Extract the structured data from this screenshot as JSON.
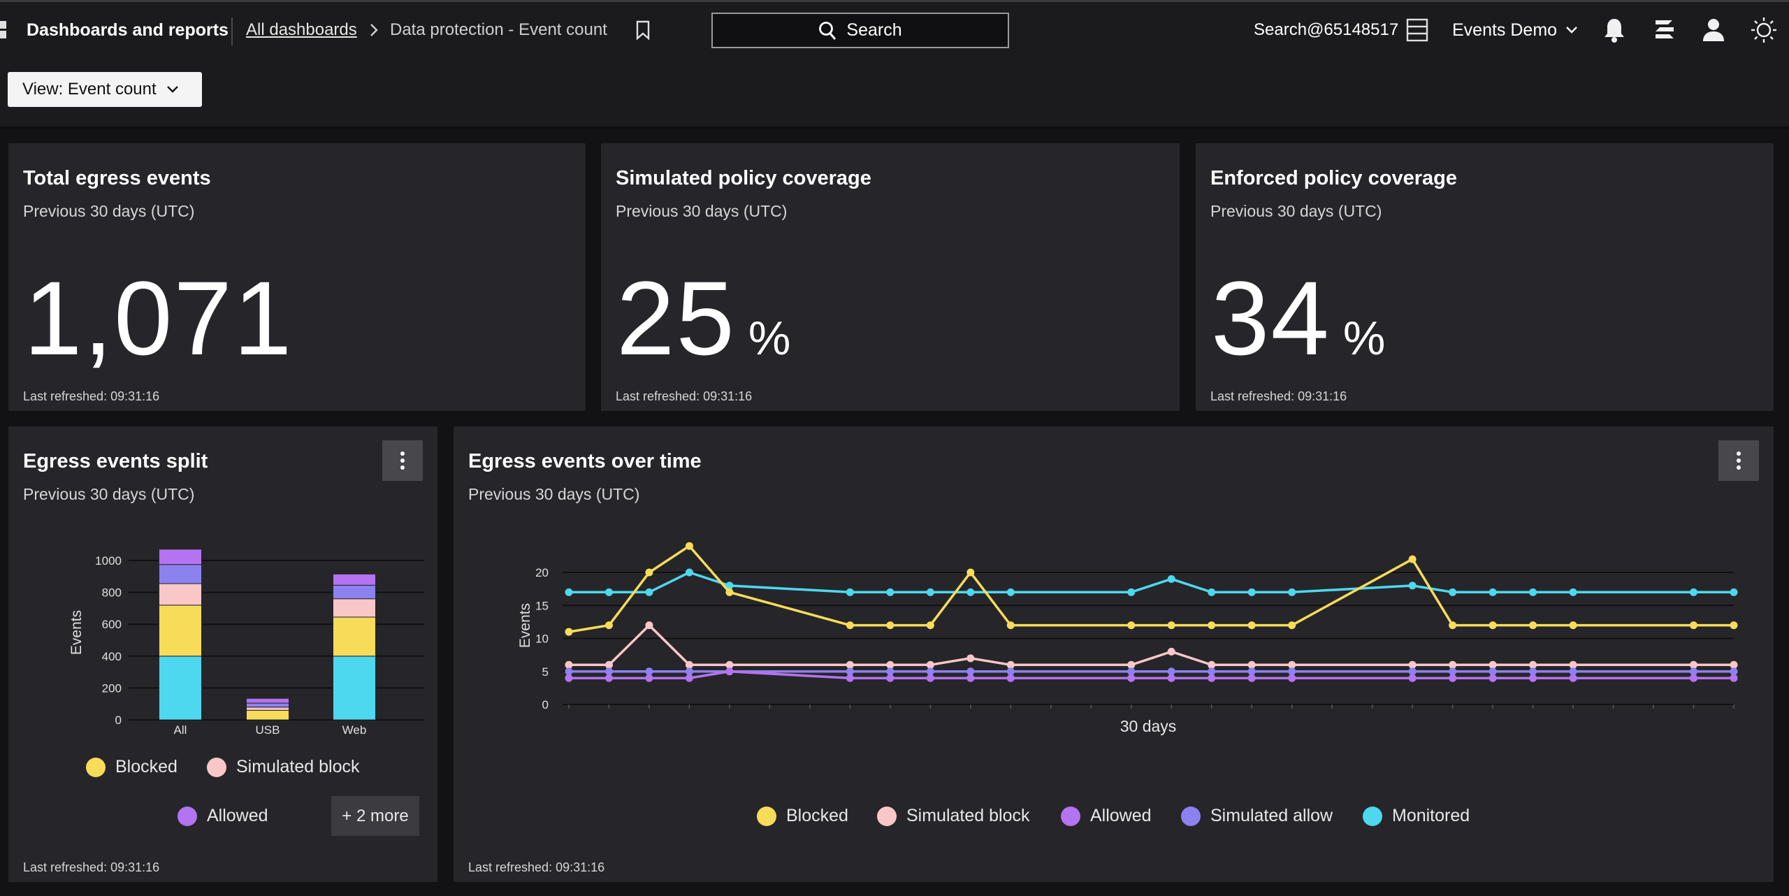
{
  "header": {
    "app_title": "Dashboards and reports",
    "breadcrumb_link": "All dashboards",
    "breadcrumb_current": "Data protection - Event count",
    "search_label": "Search",
    "tenant": "Search@65148517",
    "environment": "Events Demo"
  },
  "toolbar": {
    "view_label": "View: Event count"
  },
  "kpis": [
    {
      "title": "Total egress events",
      "subtitle": "Previous 30 days (UTC)",
      "value": "1,071",
      "unit": "",
      "refreshed": "Last refreshed: 09:31:16"
    },
    {
      "title": "Simulated policy coverage",
      "subtitle": "Previous 30 days (UTC)",
      "value": "25",
      "unit": "%",
      "refreshed": "Last refreshed: 09:31:16"
    },
    {
      "title": "Enforced policy coverage",
      "subtitle": "Previous 30 days (UTC)",
      "value": "34",
      "unit": "%",
      "refreshed": "Last refreshed: 09:31:16"
    }
  ],
  "split_card": {
    "title": "Egress events split",
    "subtitle": "Previous 30 days (UTC)",
    "refreshed": "Last refreshed: 09:31:16",
    "legend": [
      "Blocked",
      "Simulated block",
      "Allowed"
    ],
    "more_label": "+ 2 more"
  },
  "time_card": {
    "title": "Egress events over time",
    "subtitle": "Previous 30 days (UTC)",
    "refreshed": "Last refreshed: 09:31:16",
    "legend": [
      "Blocked",
      "Simulated block",
      "Allowed",
      "Simulated allow",
      "Monitored"
    ]
  },
  "colors": {
    "Monitored": "#4dd8ef",
    "Blocked": "#f7dc5a",
    "Simulated block": "#f9c7c7",
    "Allowed": "#b473f0",
    "Simulated allow": "#8b82f0"
  },
  "chart_data": [
    {
      "type": "bar",
      "stacked": true,
      "title": "Egress events split",
      "categories": [
        "All",
        "USB",
        "Web"
      ],
      "ylabel": "Events",
      "ylim": [
        0,
        1000
      ],
      "yticks": [
        0,
        200,
        400,
        600,
        800,
        1000
      ],
      "series": [
        {
          "name": "Monitored",
          "values": [
            400,
            0,
            400
          ]
        },
        {
          "name": "Blocked",
          "values": [
            320,
            60,
            245
          ]
        },
        {
          "name": "Simulated block",
          "values": [
            135,
            20,
            115
          ]
        },
        {
          "name": "Simulated allow",
          "values": [
            120,
            25,
            85
          ]
        },
        {
          "name": "Allowed",
          "values": [
            96,
            30,
            70
          ]
        }
      ]
    },
    {
      "type": "line",
      "title": "Egress events over time",
      "xlabel": "30 days",
      "ylabel": "Events",
      "ylim": [
        0,
        20
      ],
      "yticks": [
        0,
        5,
        10,
        15,
        20
      ],
      "x": [
        1,
        2,
        3,
        4,
        5,
        6,
        7,
        8,
        9,
        10,
        11,
        12,
        13,
        14,
        15,
        16,
        17,
        18,
        19,
        20,
        21,
        22,
        23,
        24,
        25,
        26,
        27,
        28,
        29,
        30
      ],
      "series": [
        {
          "name": "Monitored",
          "values": [
            17,
            17,
            17,
            20,
            18,
            null,
            null,
            17,
            17,
            17,
            17,
            17,
            null,
            null,
            17,
            19,
            17,
            17,
            17,
            null,
            null,
            18,
            17,
            17,
            17,
            17,
            null,
            null,
            17,
            17
          ],
          "markers_skip": [
            6,
            7,
            13,
            14,
            20,
            21,
            27,
            28
          ]
        },
        {
          "name": "Blocked",
          "values": [
            11,
            12,
            20,
            24,
            17,
            null,
            null,
            12,
            12,
            12,
            20,
            12,
            null,
            null,
            12,
            12,
            12,
            12,
            12,
            null,
            null,
            22,
            12,
            12,
            12,
            12,
            null,
            null,
            12,
            12
          ]
        },
        {
          "name": "Simulated block",
          "values": [
            6,
            6,
            12,
            6,
            6,
            null,
            null,
            6,
            6,
            6,
            7,
            6,
            null,
            null,
            6,
            8,
            6,
            6,
            6,
            null,
            null,
            6,
            6,
            6,
            6,
            6,
            null,
            null,
            6,
            6
          ]
        },
        {
          "name": "Simulated allow",
          "values": [
            5,
            5,
            5,
            5,
            5,
            null,
            null,
            5,
            5,
            5,
            5,
            5,
            null,
            null,
            5,
            5,
            5,
            5,
            5,
            null,
            null,
            5,
            5,
            5,
            5,
            5,
            null,
            null,
            5,
            5
          ]
        },
        {
          "name": "Allowed",
          "values": [
            4,
            4,
            4,
            4,
            5,
            null,
            null,
            4,
            4,
            4,
            4,
            4,
            null,
            null,
            4,
            4,
            4,
            4,
            4,
            null,
            null,
            4,
            4,
            4,
            4,
            4,
            null,
            null,
            4,
            4
          ]
        }
      ]
    }
  ]
}
